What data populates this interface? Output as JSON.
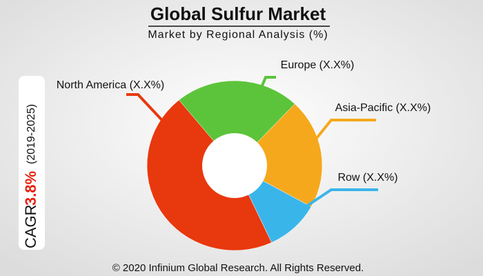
{
  "chart_data": {
    "type": "donut",
    "title": "Global Sulfur Market",
    "subtitle": "Market by Regional Analysis (%)",
    "categories": [
      "North America (X.X%)",
      "Europe (X.X%)",
      "Asia-Pacific (X.X%)",
      "Row (X.X%)"
    ],
    "values": [
      46,
      23,
      21,
      10
    ],
    "colors": [
      "#e8380d",
      "#5cc43a",
      "#f5a81c",
      "#3ab5ea"
    ],
    "annotations": {
      "cagr_label": "CAGR",
      "cagr_value": "3.8%",
      "period": "(2019-2025)"
    },
    "footer": "© 2020 Infinium Global Research. All Rights Reserved."
  }
}
